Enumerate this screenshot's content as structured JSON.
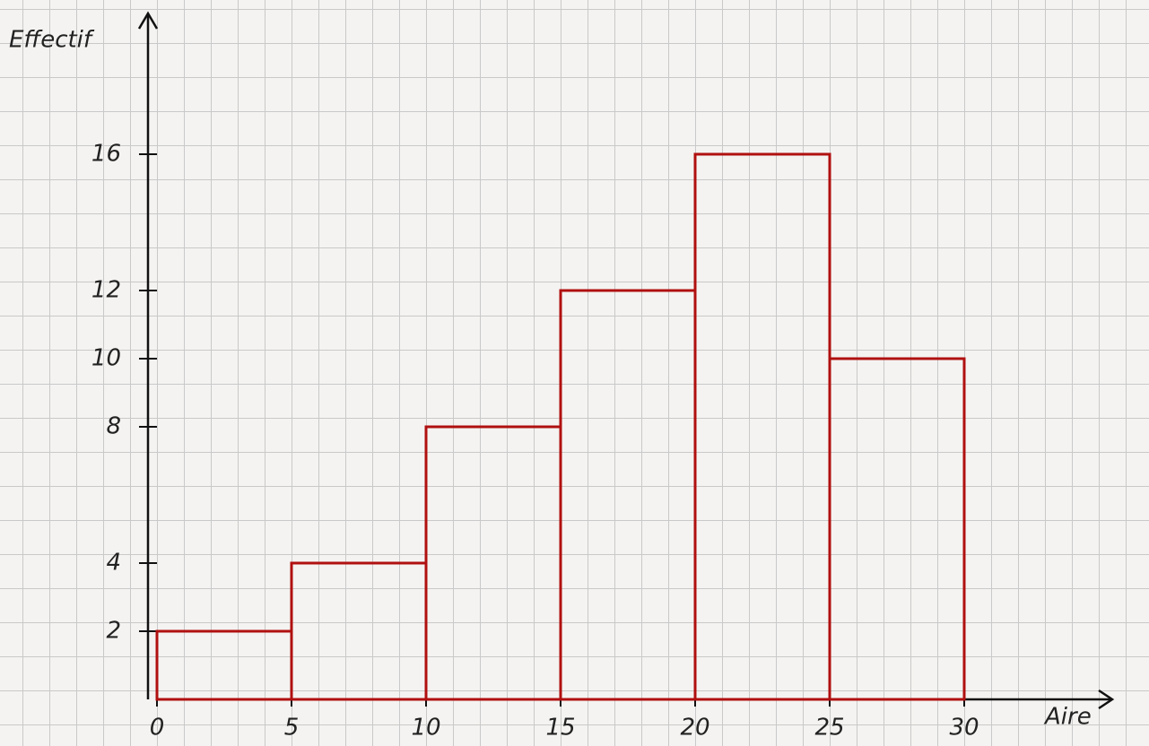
{
  "chart_data": {
    "type": "histogram",
    "x_label": "Aire",
    "y_label": "Effectif",
    "bins": [
      0,
      5,
      10,
      15,
      20,
      25,
      30
    ],
    "values": [
      2,
      4,
      8,
      12,
      16,
      10
    ],
    "color": "#b01010",
    "xlim": [
      0,
      35.5
    ],
    "ylim": [
      0,
      20
    ],
    "xticks": [
      0,
      5,
      10,
      15,
      20,
      25,
      30
    ],
    "yticks": [
      2,
      4,
      8,
      10,
      12,
      16
    ]
  }
}
